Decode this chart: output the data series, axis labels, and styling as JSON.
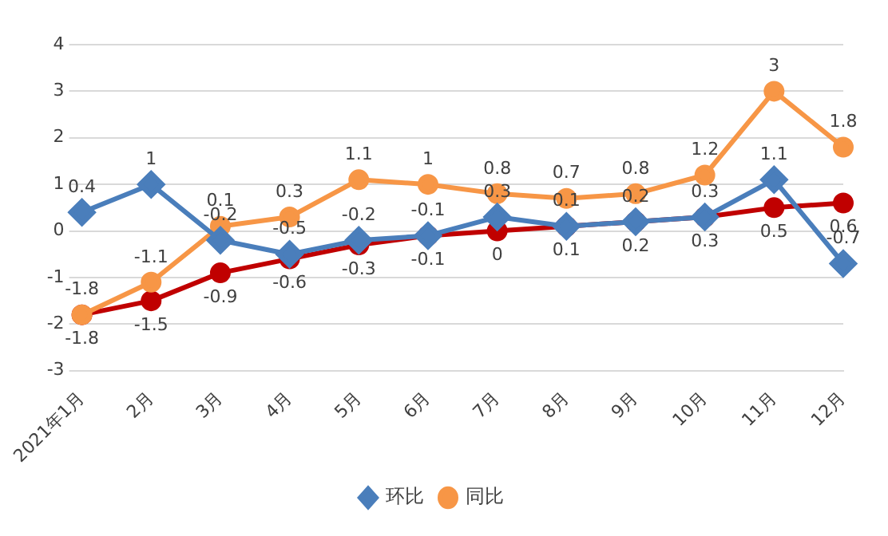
{
  "chart_data": {
    "type": "line",
    "categories": [
      "2021年1月",
      "2月",
      "3月",
      "4月",
      "5月",
      "6月",
      "7月",
      "8月",
      "9月",
      "10月",
      "11月",
      "12月"
    ],
    "series": [
      {
        "name": "环比",
        "color": "#4a7ebb",
        "marker": "diamond",
        "values": [
          0.4,
          1,
          -0.2,
          -0.5,
          -0.2,
          -0.1,
          0.3,
          0.1,
          0.2,
          0.3,
          1.1,
          -0.7
        ]
      },
      {
        "name": "同比",
        "color": "#f79646",
        "marker": "circle",
        "values": [
          -1.8,
          -1.1,
          0.1,
          0.3,
          1.1,
          1,
          0.8,
          0.7,
          0.8,
          1.2,
          3,
          1.8
        ]
      },
      {
        "color": "#c00000",
        "marker": "circle",
        "values": [
          -1.8,
          -1.5,
          -0.9,
          -0.6,
          -0.3,
          -0.1,
          0,
          0.1,
          0.2,
          0.3,
          0.5,
          0.6
        ]
      }
    ],
    "ylim": [
      -3,
      4
    ],
    "yticks": [
      -3,
      -2,
      -1,
      0,
      1,
      2,
      3,
      4
    ],
    "grid": "y",
    "legend": "bottom",
    "data_labels": true
  }
}
